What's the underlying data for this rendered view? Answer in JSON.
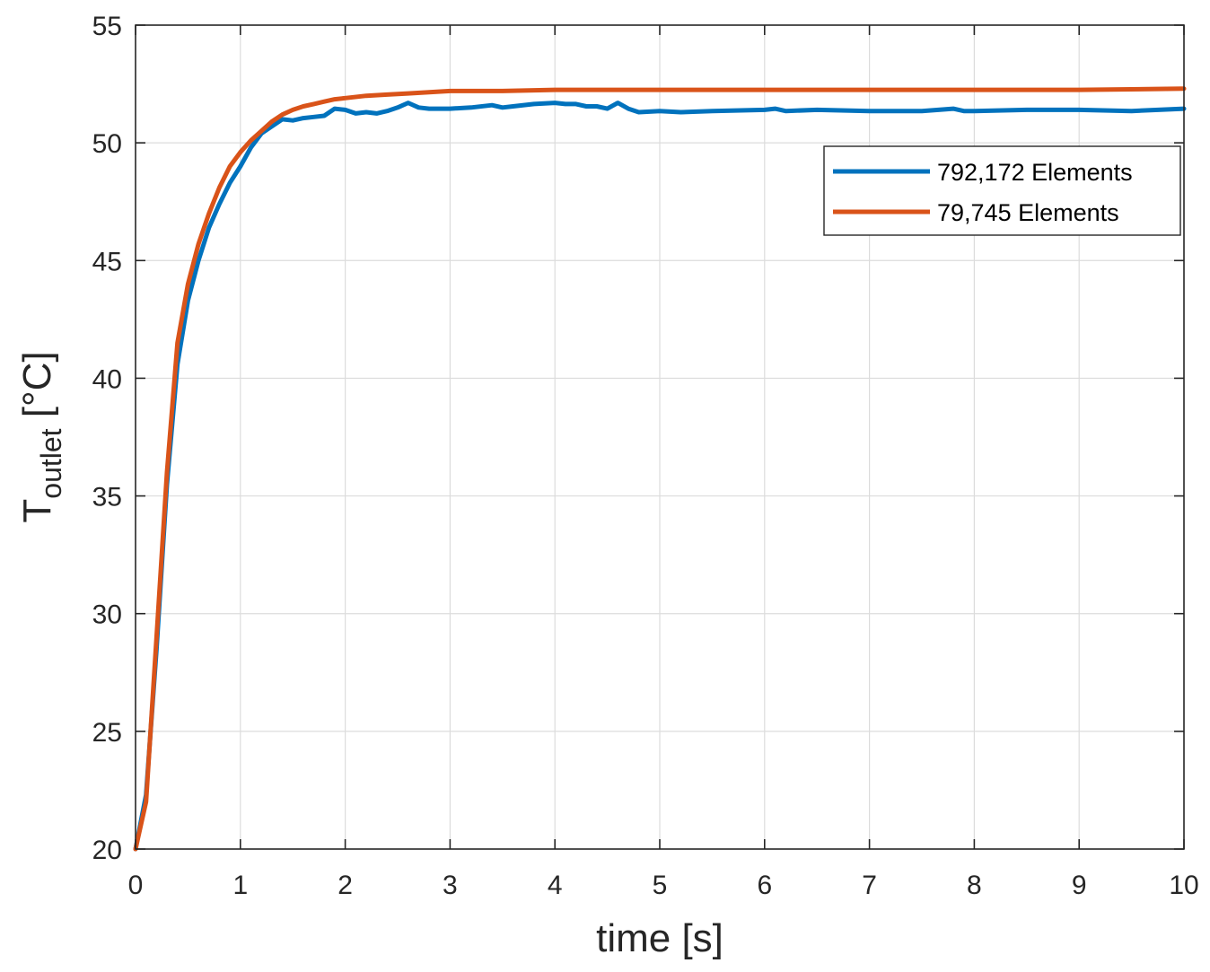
{
  "chart_data": {
    "type": "line",
    "title": "",
    "xlabel": "time [s]",
    "ylabel": {
      "main": "T",
      "subscript": "outlet",
      "unit": " [°C]"
    },
    "xlim": [
      0,
      10
    ],
    "ylim": [
      20,
      55
    ],
    "xticks": [
      0,
      1,
      2,
      3,
      4,
      5,
      6,
      7,
      8,
      9,
      10
    ],
    "yticks": [
      20,
      25,
      30,
      35,
      40,
      45,
      50,
      55
    ],
    "grid": true,
    "legend_position": "top-right",
    "series": [
      {
        "name": "792,172 Elements",
        "color": "#0072BD",
        "x": [
          0,
          0.1,
          0.2,
          0.3,
          0.4,
          0.5,
          0.6,
          0.7,
          0.8,
          0.9,
          1.0,
          1.1,
          1.2,
          1.3,
          1.4,
          1.5,
          1.6,
          1.7,
          1.8,
          1.9,
          2.0,
          2.1,
          2.2,
          2.3,
          2.4,
          2.5,
          2.6,
          2.7,
          2.8,
          2.9,
          3.0,
          3.2,
          3.4,
          3.5,
          3.6,
          3.8,
          4.0,
          4.1,
          4.2,
          4.3,
          4.4,
          4.5,
          4.6,
          4.7,
          4.8,
          5.0,
          5.2,
          5.5,
          6.0,
          6.1,
          6.2,
          6.5,
          7.0,
          7.5,
          7.8,
          7.9,
          8.0,
          8.5,
          9.0,
          9.5,
          10.0
        ],
        "y": [
          20.0,
          22.3,
          28.5,
          35.5,
          40.6,
          43.3,
          45.0,
          46.4,
          47.4,
          48.3,
          49.0,
          49.8,
          50.4,
          50.7,
          51.0,
          50.95,
          51.05,
          51.1,
          51.15,
          51.45,
          51.4,
          51.25,
          51.3,
          51.25,
          51.35,
          51.5,
          51.7,
          51.5,
          51.45,
          51.45,
          51.45,
          51.5,
          51.6,
          51.5,
          51.55,
          51.65,
          51.7,
          51.65,
          51.65,
          51.55,
          51.55,
          51.45,
          51.7,
          51.45,
          51.3,
          51.35,
          51.3,
          51.35,
          51.4,
          51.45,
          51.35,
          51.4,
          51.35,
          51.35,
          51.45,
          51.35,
          51.35,
          51.4,
          51.4,
          51.35,
          51.45
        ]
      },
      {
        "name": "79,745 Elements",
        "color": "#D95319",
        "x": [
          0,
          0.1,
          0.2,
          0.3,
          0.4,
          0.5,
          0.6,
          0.7,
          0.8,
          0.9,
          1.0,
          1.1,
          1.2,
          1.3,
          1.4,
          1.5,
          1.6,
          1.7,
          1.8,
          1.9,
          2.0,
          2.2,
          2.4,
          2.6,
          2.8,
          3.0,
          3.5,
          4.0,
          4.5,
          5.0,
          6.0,
          7.0,
          8.0,
          9.0,
          10.0
        ],
        "y": [
          20.0,
          22.0,
          29.0,
          36.0,
          41.5,
          44.0,
          45.7,
          47.0,
          48.1,
          49.0,
          49.6,
          50.1,
          50.5,
          50.9,
          51.2,
          51.4,
          51.55,
          51.65,
          51.75,
          51.85,
          51.9,
          52.0,
          52.05,
          52.1,
          52.15,
          52.2,
          52.2,
          52.25,
          52.25,
          52.25,
          52.25,
          52.25,
          52.25,
          52.25,
          52.3
        ]
      }
    ]
  }
}
